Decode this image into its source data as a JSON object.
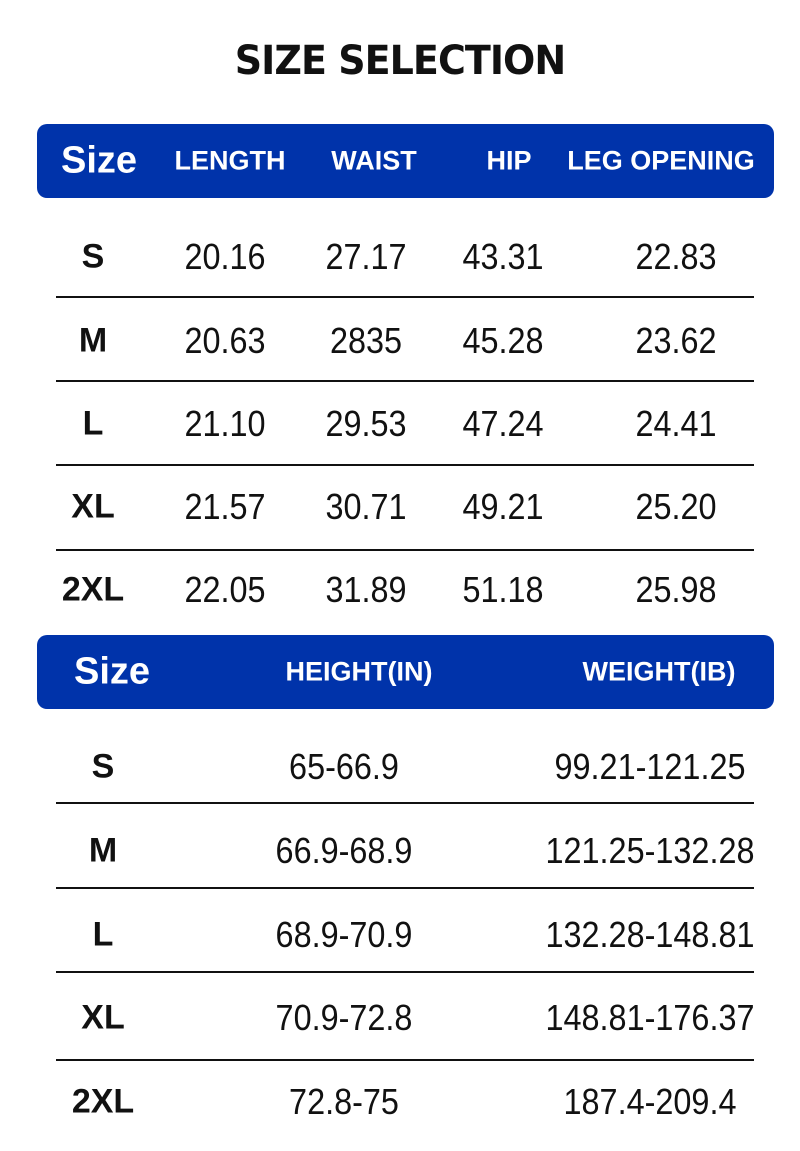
{
  "title": "SIZE SELECTION",
  "accent_color": "#0033aa",
  "table1": {
    "headers": [
      "Size",
      "LENGTH",
      "WAIST",
      "HIP",
      "LEG OPENING"
    ],
    "rows": [
      [
        "S",
        "20.16",
        "27.17",
        "43.31",
        "22.83"
      ],
      [
        "M",
        "20.63",
        "2835",
        "45.28",
        "23.62"
      ],
      [
        "L",
        "21.10",
        "29.53",
        "47.24",
        "24.41"
      ],
      [
        "XL",
        "21.57",
        "30.71",
        "49.21",
        "25.20"
      ],
      [
        "2XL",
        "22.05",
        "31.89",
        "51.18",
        "25.98"
      ]
    ]
  },
  "table2": {
    "headers": [
      "Size",
      "HEIGHT(IN)",
      "WEIGHT(IB)"
    ],
    "rows": [
      [
        "S",
        "65-66.9",
        "99.21-121.25"
      ],
      [
        "M",
        "66.9-68.9",
        "121.25-132.28"
      ],
      [
        "L",
        "68.9-70.9",
        "132.28-148.81"
      ],
      [
        "XL",
        "70.9-72.8",
        "148.81-176.37"
      ],
      [
        "2XL",
        "72.8-75",
        "187.4-209.4"
      ]
    ]
  }
}
